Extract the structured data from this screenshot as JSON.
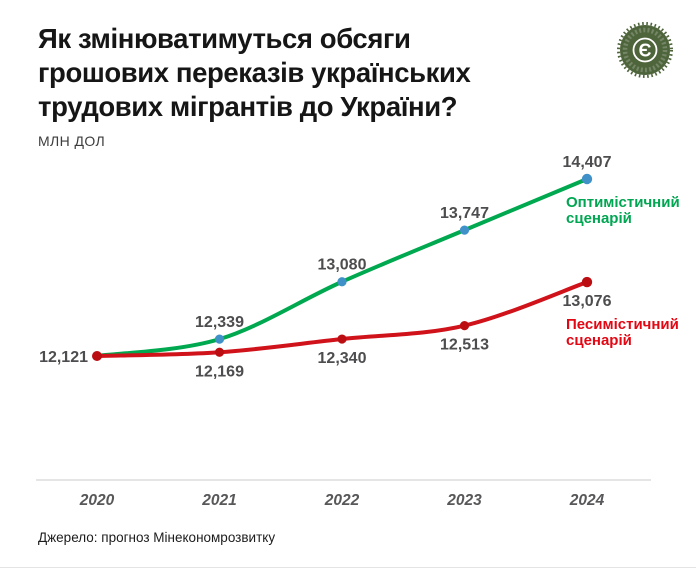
{
  "header": {
    "title_lines": [
      "Як змінюватимуться обсяги",
      "грошових переказів українських",
      "трудових мігрантів до України?"
    ],
    "unit_label": "МЛН ДОЛ",
    "logo_letter": "Є"
  },
  "source_note": "Джерело: прогноз Мінекономрозвитку",
  "colors": {
    "optimistic_line": "#00a84f",
    "optimistic_text": "#00a651",
    "optimistic_marker": "#4191c9",
    "pessimistic_line": "#d0121b",
    "pessimistic_text": "#e30613",
    "pessimistic_marker": "#bb0e13",
    "value_label": "#4d4d4f",
    "year_label": "#58585a",
    "axis_line": "#cbcbcb",
    "logo_green": "#4e653c"
  },
  "chart_data": {
    "type": "line",
    "title": "Як змінюватимуться обсяги грошових переказів українських трудових мігрантів до України?",
    "unit": "млн дол",
    "categories": [
      "2020",
      "2021",
      "2022",
      "2023",
      "2024"
    ],
    "series": [
      {
        "name": "Оптимістичний сценарій",
        "values": [
          12121,
          12339,
          13080,
          13747,
          14407
        ],
        "color_key": "optimistic",
        "label_placements": [
          "left",
          "above",
          "above",
          "above",
          "above"
        ]
      },
      {
        "name": "Песимістичний сценарій",
        "values": [
          12121,
          12169,
          12340,
          12513,
          13076
        ],
        "color_key": "pessimistic",
        "label_placements": [
          null,
          "below",
          "below",
          "below",
          "below"
        ]
      }
    ],
    "ylim": [
      12121,
      14407
    ],
    "grid": "off",
    "x_axis_line": true,
    "legend_position": "right-of-line-ends"
  }
}
